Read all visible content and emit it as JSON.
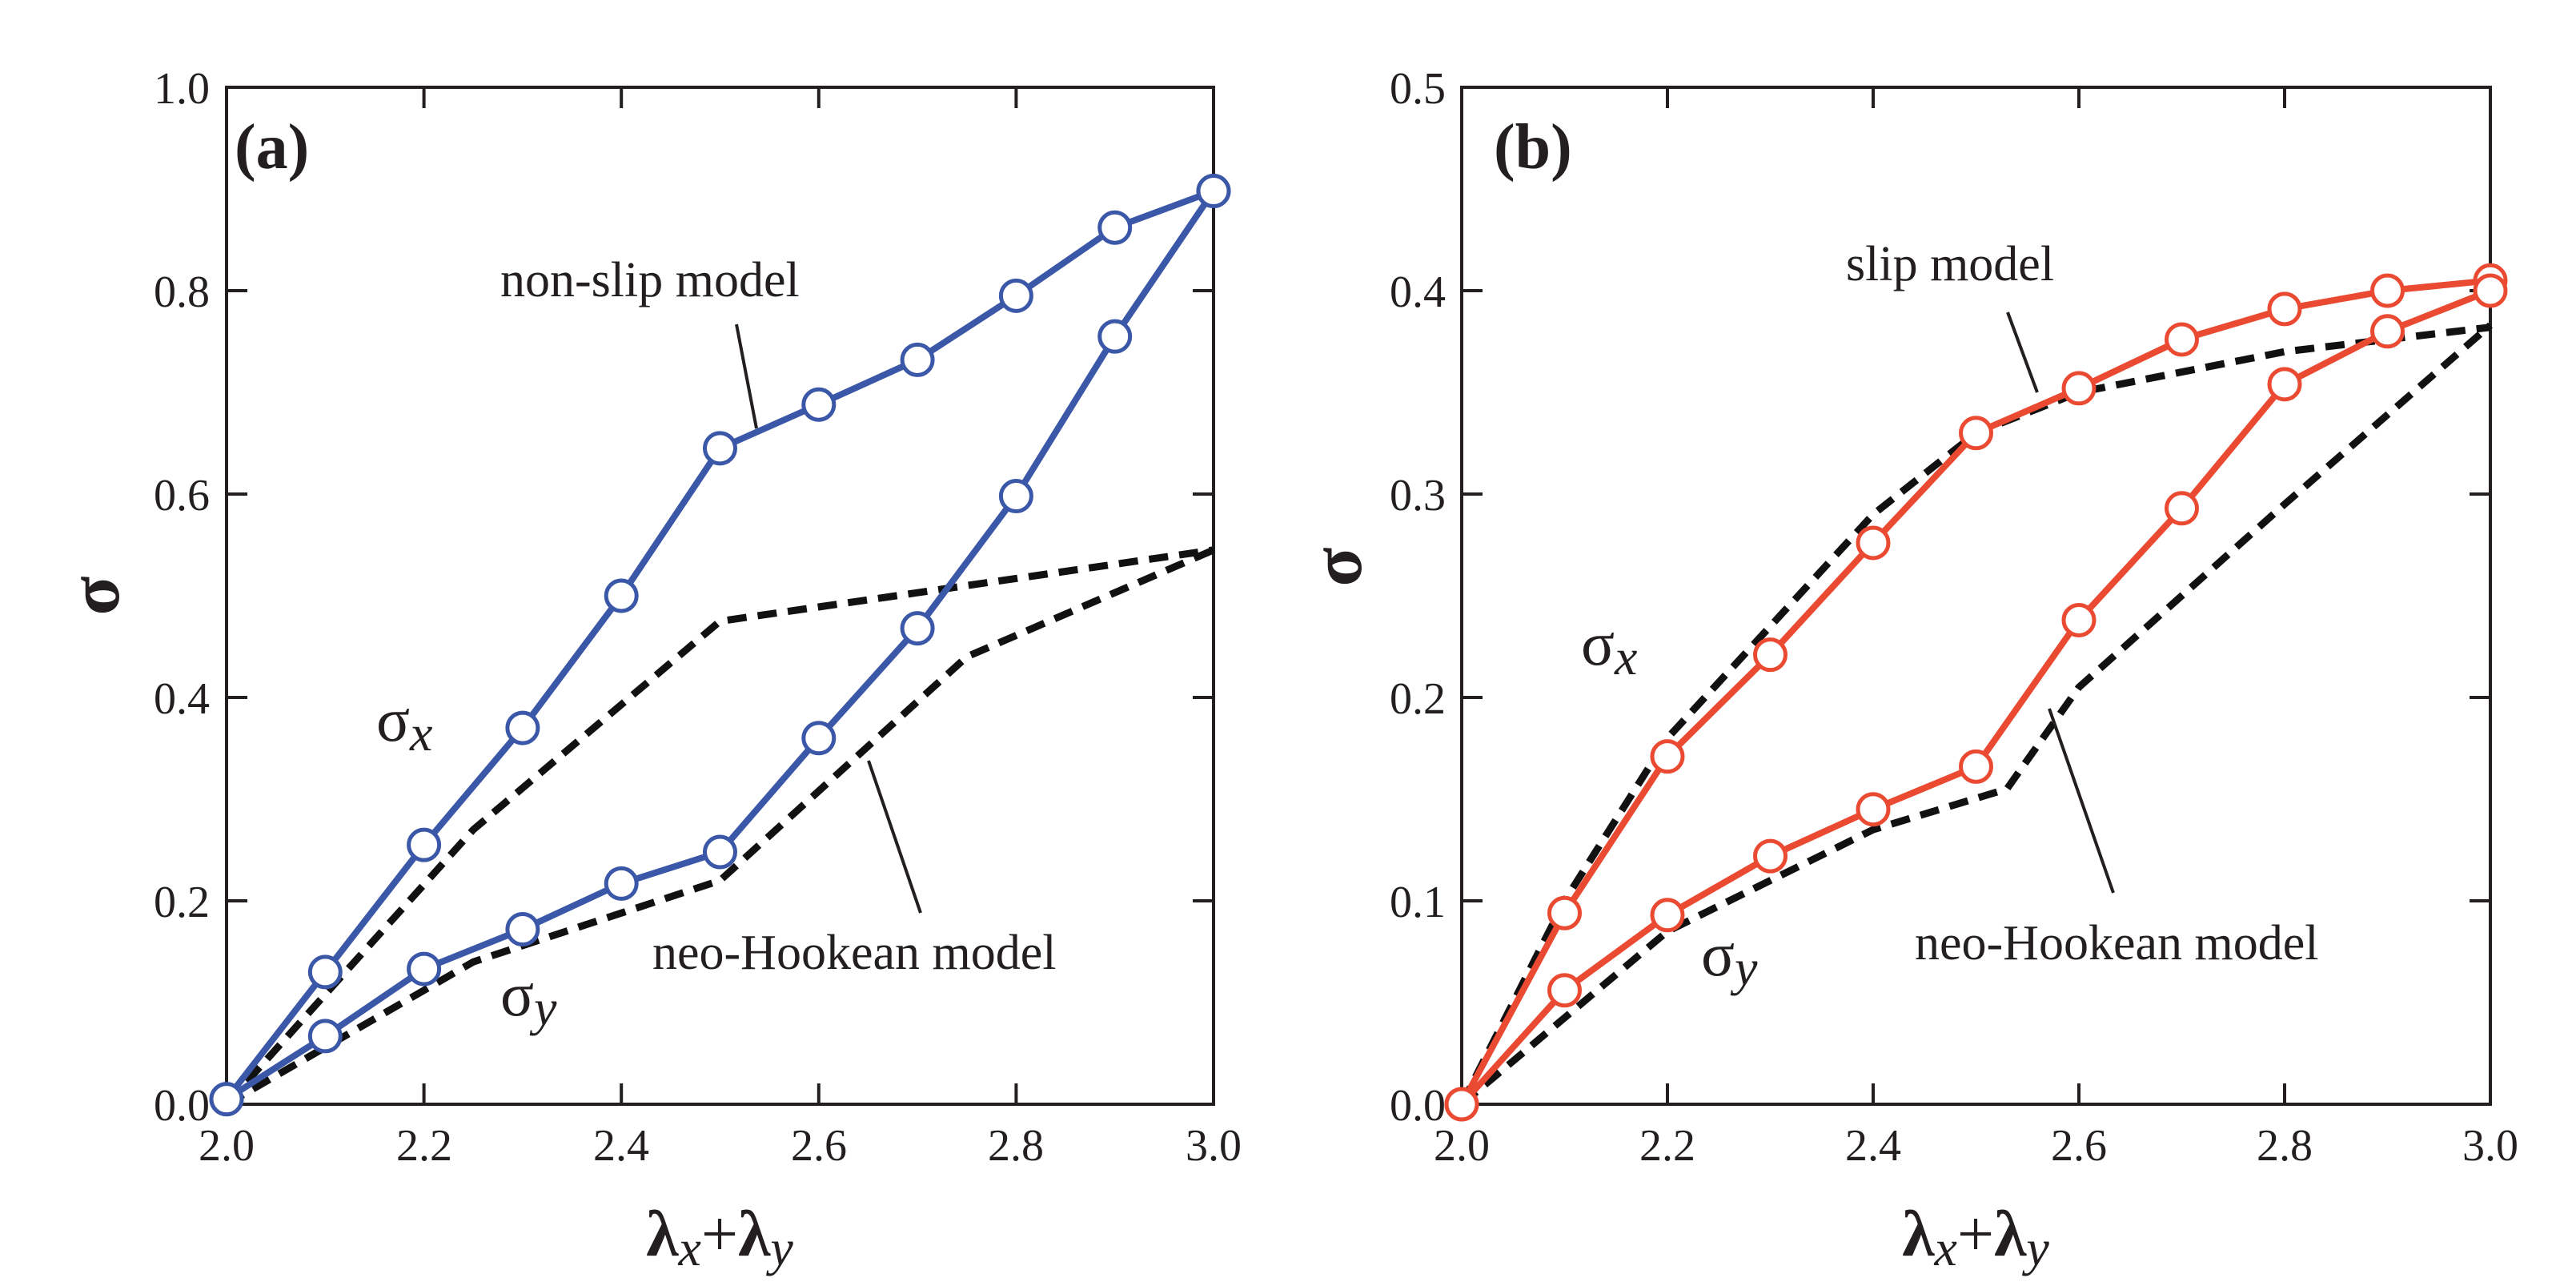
{
  "chart_data": [
    {
      "type": "line",
      "panel_label": "(a)",
      "xlabel": {
        "main": "λ",
        "sub1": "x",
        "plus": "+",
        "main2": "λ",
        "sub2": "y"
      },
      "ylabel": "σ",
      "xlim": [
        2.0,
        3.0
      ],
      "ylim": [
        0.0,
        1.0
      ],
      "xticks": [
        "2.0",
        "2.2",
        "2.4",
        "2.6",
        "2.8",
        "3.0"
      ],
      "yticks": [
        "0.0",
        "0.2",
        "0.4",
        "0.6",
        "0.8",
        "1.0"
      ],
      "grid": false,
      "series_color": "#3b57a7",
      "dashed_color": "#111111",
      "x": [
        2.0,
        2.1,
        2.2,
        2.3,
        2.4,
        2.5,
        2.6,
        2.7,
        2.8,
        2.9,
        3.0
      ],
      "series": [
        {
          "label": {
            "main": "σ",
            "sub": "x"
          },
          "style": "solid-markers",
          "values": [
            0.005,
            0.13,
            0.255,
            0.37,
            0.5,
            0.645,
            0.688,
            0.732,
            0.795,
            0.862,
            0.898
          ]
        },
        {
          "label": {
            "main": "σ",
            "sub": "y"
          },
          "style": "solid-markers",
          "values": [
            0.005,
            0.067,
            0.133,
            0.172,
            0.217,
            0.248,
            0.36,
            0.468,
            0.598,
            0.755,
            0.898
          ]
        }
      ],
      "reference_lines": [
        {
          "style": "dashed",
          "x": [
            2.0,
            2.25,
            2.5,
            3.0
          ],
          "values": [
            0.0,
            0.27,
            0.475,
            0.545
          ]
        },
        {
          "style": "dashed",
          "x": [
            2.0,
            2.25,
            2.5,
            2.75,
            3.0
          ],
          "values": [
            0.0,
            0.14,
            0.22,
            0.44,
            0.545
          ]
        }
      ],
      "annotations": [
        {
          "text": "non-slip model"
        },
        {
          "text": "neo-Hookean model"
        }
      ]
    },
    {
      "type": "line",
      "panel_label": "(b)",
      "xlabel": {
        "main": "λ",
        "sub1": "x",
        "plus": "+",
        "main2": "λ",
        "sub2": "y"
      },
      "ylabel": "σ",
      "xlim": [
        2.0,
        3.0
      ],
      "ylim": [
        0.0,
        0.5
      ],
      "xticks": [
        "2.0",
        "2.2",
        "2.4",
        "2.6",
        "2.8",
        "3.0"
      ],
      "yticks": [
        "0.0",
        "0.1",
        "0.2",
        "0.3",
        "0.4",
        "0.5"
      ],
      "grid": false,
      "series_color": "#ea4a31",
      "dashed_color": "#111111",
      "x": [
        2.0,
        2.1,
        2.2,
        2.3,
        2.4,
        2.5,
        2.6,
        2.7,
        2.8,
        2.9,
        3.0
      ],
      "series": [
        {
          "label": {
            "main": "σ",
            "sub": "x"
          },
          "style": "solid-markers",
          "values": [
            0.0,
            0.094,
            0.171,
            0.221,
            0.276,
            0.33,
            0.352,
            0.376,
            0.391,
            0.4,
            0.405
          ]
        },
        {
          "label": {
            "main": "σ",
            "sub": "y"
          },
          "style": "solid-markers",
          "values": [
            0.0,
            0.056,
            0.093,
            0.122,
            0.145,
            0.166,
            0.238,
            0.293,
            0.354,
            0.38,
            0.4
          ]
        }
      ],
      "reference_lines": [
        {
          "style": "dashed",
          "x": [
            2.0,
            2.1,
            2.2,
            2.3,
            2.4,
            2.5,
            2.6,
            2.8,
            3.0
          ],
          "values": [
            0.0,
            0.1,
            0.18,
            0.235,
            0.29,
            0.33,
            0.35,
            0.37,
            0.382
          ]
        },
        {
          "style": "dashed",
          "x": [
            2.0,
            2.2,
            2.4,
            2.53,
            2.6,
            2.8,
            3.0
          ],
          "values": [
            0.0,
            0.085,
            0.135,
            0.155,
            0.205,
            0.295,
            0.383
          ]
        }
      ],
      "annotations": [
        {
          "text": "slip model"
        },
        {
          "text": "neo-Hookean model"
        }
      ]
    }
  ]
}
